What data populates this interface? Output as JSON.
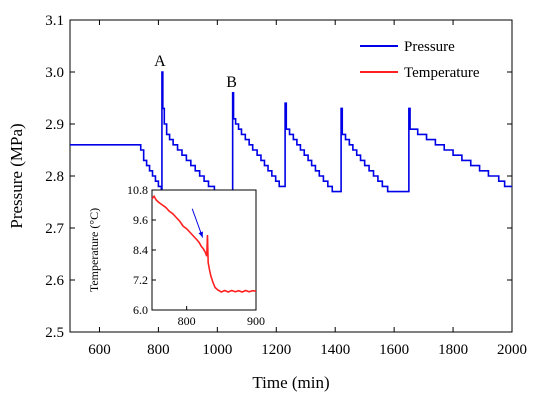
{
  "chart_data": [
    {
      "type": "line",
      "xlabel": "Time (min)",
      "ylabel": "Pressure (MPa)",
      "xlim": [
        500,
        2000
      ],
      "ylim": [
        2.5,
        3.1
      ],
      "xticks": [
        600,
        800,
        1000,
        1200,
        1400,
        1600,
        1800,
        2000
      ],
      "yticks": [
        2.5,
        2.6,
        2.7,
        2.8,
        2.9,
        3.0,
        3.1
      ],
      "legend": {
        "placement": "top-right",
        "entries": [
          {
            "name": "Pressure",
            "color": "#0000e6"
          },
          {
            "name": "Temperature",
            "color": "#ff2020"
          }
        ]
      },
      "annotations": [
        {
          "text": "A",
          "x": 812,
          "y": 3.0
        },
        {
          "text": "B",
          "x": 1055,
          "y": 2.96
        }
      ],
      "series": [
        {
          "name": "Pressure",
          "color": "#0000e6",
          "step": true,
          "points": [
            [
              500,
              2.86
            ],
            [
              720,
              2.86
            ],
            [
              740,
              2.85
            ],
            [
              750,
              2.83
            ],
            [
              760,
              2.82
            ],
            [
              770,
              2.81
            ],
            [
              780,
              2.8
            ],
            [
              790,
              2.79
            ],
            [
              800,
              2.78
            ],
            [
              810,
              2.77
            ],
            [
              812,
              3.0
            ],
            [
              815,
              2.93
            ],
            [
              820,
              2.9
            ],
            [
              828,
              2.88
            ],
            [
              838,
              2.87
            ],
            [
              850,
              2.86
            ],
            [
              865,
              2.85
            ],
            [
              880,
              2.84
            ],
            [
              895,
              2.83
            ],
            [
              910,
              2.82
            ],
            [
              925,
              2.81
            ],
            [
              940,
              2.8
            ],
            [
              955,
              2.79
            ],
            [
              970,
              2.78
            ],
            [
              990,
              2.77
            ],
            [
              1050,
              2.77
            ],
            [
              1052,
              2.96
            ],
            [
              1055,
              2.91
            ],
            [
              1062,
              2.9
            ],
            [
              1072,
              2.89
            ],
            [
              1082,
              2.88
            ],
            [
              1095,
              2.87
            ],
            [
              1108,
              2.86
            ],
            [
              1120,
              2.85
            ],
            [
              1135,
              2.84
            ],
            [
              1148,
              2.83
            ],
            [
              1160,
              2.82
            ],
            [
              1172,
              2.81
            ],
            [
              1185,
              2.8
            ],
            [
              1198,
              2.79
            ],
            [
              1210,
              2.78
            ],
            [
              1228,
              2.78
            ],
            [
              1230,
              2.94
            ],
            [
              1234,
              2.89
            ],
            [
              1245,
              2.88
            ],
            [
              1258,
              2.87
            ],
            [
              1270,
              2.86
            ],
            [
              1282,
              2.85
            ],
            [
              1295,
              2.84
            ],
            [
              1308,
              2.83
            ],
            [
              1320,
              2.82
            ],
            [
              1333,
              2.81
            ],
            [
              1346,
              2.8
            ],
            [
              1360,
              2.79
            ],
            [
              1375,
              2.78
            ],
            [
              1390,
              2.77
            ],
            [
              1418,
              2.77
            ],
            [
              1420,
              2.93
            ],
            [
              1424,
              2.88
            ],
            [
              1435,
              2.87
            ],
            [
              1448,
              2.86
            ],
            [
              1460,
              2.85
            ],
            [
              1473,
              2.84
            ],
            [
              1486,
              2.83
            ],
            [
              1500,
              2.82
            ],
            [
              1515,
              2.81
            ],
            [
              1530,
              2.8
            ],
            [
              1545,
              2.79
            ],
            [
              1560,
              2.78
            ],
            [
              1578,
              2.77
            ],
            [
              1648,
              2.77
            ],
            [
              1650,
              2.93
            ],
            [
              1654,
              2.89
            ],
            [
              1680,
              2.88
            ],
            [
              1710,
              2.87
            ],
            [
              1740,
              2.86
            ],
            [
              1770,
              2.85
            ],
            [
              1800,
              2.84
            ],
            [
              1830,
              2.83
            ],
            [
              1860,
              2.82
            ],
            [
              1890,
              2.81
            ],
            [
              1920,
              2.8
            ],
            [
              1955,
              2.79
            ],
            [
              1975,
              2.78
            ],
            [
              2000,
              2.78
            ]
          ]
        }
      ]
    },
    {
      "type": "line",
      "inset": true,
      "xlabel": "",
      "ylabel": "Temperature (°C)",
      "xlim": [
        750,
        900
      ],
      "ylim": [
        6.0,
        10.8
      ],
      "xticks": [
        800,
        900
      ],
      "yticks": [
        6.0,
        7.2,
        8.4,
        9.6,
        10.8
      ],
      "series": [
        {
          "name": "Temperature",
          "color": "#ff2020",
          "points": [
            [
              750,
              10.45
            ],
            [
              753,
              10.55
            ],
            [
              756,
              10.4
            ],
            [
              760,
              10.3
            ],
            [
              765,
              10.2
            ],
            [
              770,
              10.1
            ],
            [
              775,
              9.95
            ],
            [
              780,
              9.85
            ],
            [
              785,
              9.7
            ],
            [
              790,
              9.55
            ],
            [
              795,
              9.35
            ],
            [
              800,
              9.25
            ],
            [
              805,
              9.1
            ],
            [
              810,
              8.95
            ],
            [
              815,
              8.8
            ],
            [
              818,
              8.7
            ],
            [
              821,
              8.55
            ],
            [
              824,
              8.45
            ],
            [
              827,
              8.3
            ],
            [
              829,
              8.15
            ],
            [
              830,
              9.0
            ],
            [
              831,
              7.9
            ],
            [
              833,
              7.6
            ],
            [
              835,
              7.35
            ],
            [
              838,
              7.1
            ],
            [
              841,
              6.9
            ],
            [
              845,
              6.8
            ],
            [
              850,
              6.72
            ],
            [
              855,
              6.78
            ],
            [
              860,
              6.72
            ],
            [
              865,
              6.78
            ],
            [
              870,
              6.73
            ],
            [
              875,
              6.77
            ],
            [
              880,
              6.72
            ],
            [
              885,
              6.78
            ],
            [
              890,
              6.73
            ],
            [
              895,
              6.77
            ],
            [
              900,
              6.75
            ]
          ]
        }
      ],
      "arrow": {
        "from": [
          808,
          10.05
        ],
        "to": [
          823,
          8.9
        ],
        "color": "#0000e6"
      }
    }
  ]
}
